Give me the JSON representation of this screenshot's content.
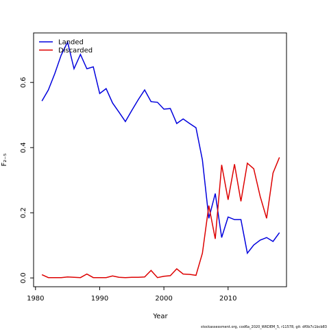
{
  "chart_data": {
    "type": "line",
    "xlabel": "Year",
    "ylabel": "F₂₋₅",
    "caption": "stockassessment.org, cod6a_2020_WKDEM_5, r11578, git: df0b7c1bcb83",
    "x": [
      1981,
      1982,
      1983,
      1984,
      1985,
      1986,
      1987,
      1988,
      1989,
      1990,
      1991,
      1992,
      1993,
      1994,
      1995,
      1996,
      1997,
      1998,
      1999,
      2000,
      2001,
      2002,
      2003,
      2004,
      2005,
      2006,
      2007,
      2008,
      2009,
      2010,
      2011,
      2012,
      2013,
      2014,
      2015,
      2016,
      2017,
      2018
    ],
    "series": [
      {
        "name": "Landed",
        "color": "#0000dd",
        "values": [
          0.543,
          0.577,
          0.627,
          0.684,
          0.724,
          0.642,
          0.686,
          0.642,
          0.648,
          0.566,
          0.581,
          0.537,
          0.509,
          0.48,
          0.514,
          0.547,
          0.577,
          0.541,
          0.539,
          0.518,
          0.52,
          0.474,
          0.488,
          0.474,
          0.461,
          0.362,
          0.183,
          0.259,
          0.124,
          0.187,
          0.179,
          0.179,
          0.076,
          0.101,
          0.116,
          0.124,
          0.112,
          0.139
        ]
      },
      {
        "name": "Discarded",
        "color": "#dd0000",
        "values": [
          0.01,
          0.001,
          0.001,
          0.001,
          0.003,
          0.002,
          0.001,
          0.012,
          0.001,
          0.001,
          0.001,
          0.006,
          0.002,
          0.001,
          0.002,
          0.002,
          0.003,
          0.023,
          0.001,
          0.005,
          0.007,
          0.028,
          0.012,
          0.011,
          0.008,
          0.076,
          0.222,
          0.12,
          0.347,
          0.24,
          0.349,
          0.235,
          0.352,
          0.335,
          0.25,
          0.183,
          0.322,
          0.37
        ]
      }
    ],
    "xlim": [
      1979.7,
      2019.1
    ],
    "ylim": [
      -0.027,
      0.752
    ],
    "xticks": [
      1980,
      1990,
      2000,
      2010
    ],
    "yticks": [
      {
        "value": 0,
        "label": "0.0"
      },
      0.2,
      0.4,
      0.6
    ],
    "legend": "upper left",
    "grid": false
  }
}
